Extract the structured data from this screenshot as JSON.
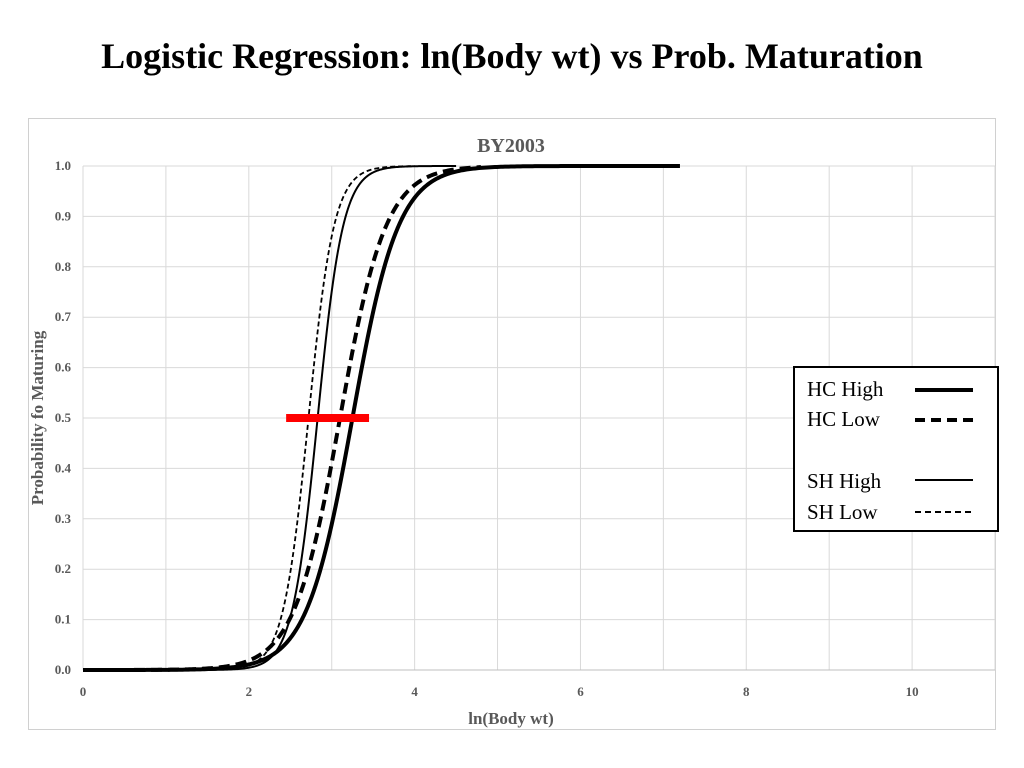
{
  "slide": {
    "title": "Logistic Regression: ln(Body wt) vs Prob. Maturation"
  },
  "chart_data": {
    "type": "line",
    "title": "BY2003",
    "xlabel": "ln(Body wt)",
    "ylabel": "Probability fo Maturing",
    "xlim": [
      0,
      11
    ],
    "ylim": [
      0,
      1
    ],
    "x_ticks": [
      "0",
      "2",
      "4",
      "6",
      "8",
      "10"
    ],
    "y_ticks": [
      "0.0",
      "0.1",
      "0.2",
      "0.3",
      "0.4",
      "0.5",
      "0.6",
      "0.7",
      "0.8",
      "0.9",
      "1.0"
    ],
    "grid": true,
    "legend_position": "right",
    "series": [
      {
        "name": "HC High",
        "style": "thick-solid",
        "color": "#000000",
        "midpoint": 3.25,
        "slope": 3.6,
        "x_range": [
          0,
          7.2
        ]
      },
      {
        "name": "HC Low",
        "style": "thick-dashed",
        "color": "#000000",
        "midpoint": 3.1,
        "slope": 3.6,
        "x_range": [
          0,
          4.8
        ]
      },
      {
        "name": "SH High",
        "style": "thin-solid",
        "color": "#000000",
        "midpoint": 2.83,
        "slope": 6.5,
        "x_range": [
          0,
          4.5
        ]
      },
      {
        "name": "SH Low",
        "style": "thin-dashed",
        "color": "#000000",
        "midpoint": 2.72,
        "slope": 6.5,
        "x_range": [
          0,
          4.0
        ]
      }
    ],
    "annotations": [
      {
        "type": "reference-bar",
        "color": "#ff0000",
        "x_start": 2.45,
        "x_end": 3.45,
        "y": 0.5
      }
    ]
  }
}
